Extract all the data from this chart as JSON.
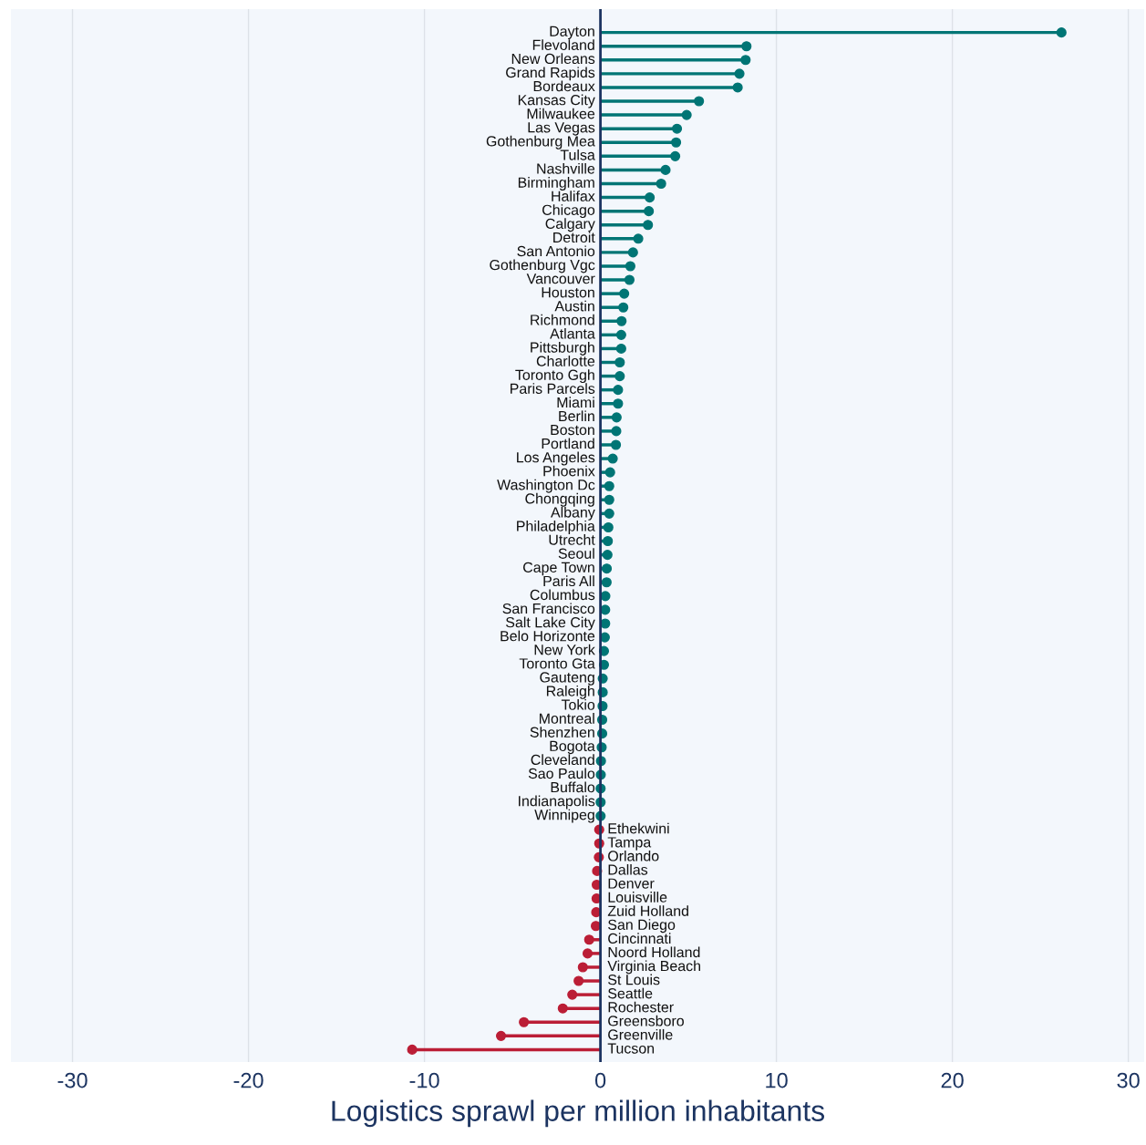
{
  "chart_data": {
    "type": "lollipop",
    "orientation": "horizontal",
    "xlabel": "Logistics sprawl per million inhabitants",
    "categories": [
      "Dayton",
      "Flevoland",
      "New Orleans",
      "Grand Rapids",
      "Bordeaux",
      "Kansas City",
      "Milwaukee",
      "Las Vegas",
      "Gothenburg Mea",
      "Tulsa",
      "Nashville",
      "Birmingham",
      "Halifax",
      "Chicago",
      "Calgary",
      "Detroit",
      "San Antonio",
      "Gothenburg Vgc",
      "Vancouver",
      "Houston",
      "Austin",
      "Richmond",
      "Atlanta",
      "Pittsburgh",
      "Charlotte",
      "Toronto Ggh",
      "Paris Parcels",
      "Miami",
      "Berlin",
      "Boston",
      "Portland",
      "Los Angeles",
      "Phoenix",
      "Washington Dc",
      "Chongqing",
      "Albany",
      "Philadelphia",
      "Utrecht",
      "Seoul",
      "Cape Town",
      "Paris All",
      "Columbus",
      "San Francisco",
      "Salt Lake City",
      "Belo Horizonte",
      "New York",
      "Toronto Gta",
      "Gauteng",
      "Raleigh",
      "Tokio",
      "Montreal",
      "Shenzhen",
      "Bogota",
      "Cleveland",
      "Sao Paulo",
      "Buffalo",
      "Indianapolis",
      "Winnipeg",
      "Ethekwini",
      "Tampa",
      "Orlando",
      "Dallas",
      "Denver",
      "Louisville",
      "Zuid Holland",
      "San Diego",
      "Cincinnati",
      "Noord Holland",
      "Virginia Beach",
      "St Louis",
      "Seattle",
      "Rochester",
      "Greensboro",
      "Greenville",
      "Tucson"
    ],
    "values": [
      26.2,
      8.3,
      8.25,
      7.9,
      7.8,
      5.6,
      4.9,
      4.35,
      4.3,
      4.25,
      3.7,
      3.45,
      2.8,
      2.75,
      2.7,
      2.15,
      1.85,
      1.7,
      1.65,
      1.35,
      1.3,
      1.2,
      1.18,
      1.18,
      1.1,
      1.1,
      1.0,
      1.0,
      0.92,
      0.9,
      0.88,
      0.7,
      0.55,
      0.5,
      0.5,
      0.5,
      0.45,
      0.42,
      0.4,
      0.36,
      0.35,
      0.28,
      0.27,
      0.27,
      0.25,
      0.2,
      0.2,
      0.13,
      0.13,
      0.12,
      0.1,
      0.1,
      0.07,
      0.03,
      0.02,
      0.01,
      0.01,
      0.01,
      -0.07,
      -0.07,
      -0.09,
      -0.19,
      -0.21,
      -0.22,
      -0.24,
      -0.26,
      -0.64,
      -0.73,
      -1.0,
      -1.24,
      -1.6,
      -2.14,
      -4.35,
      -5.65,
      -10.7
    ],
    "colors": [
      "#007575",
      "#007575",
      "#007575",
      "#007575",
      "#007575",
      "#007575",
      "#007575",
      "#007575",
      "#007575",
      "#007575",
      "#007575",
      "#007575",
      "#007575",
      "#007575",
      "#007575",
      "#007575",
      "#007575",
      "#007575",
      "#007575",
      "#007575",
      "#007575",
      "#007575",
      "#007575",
      "#007575",
      "#007575",
      "#007575",
      "#007575",
      "#007575",
      "#007575",
      "#007575",
      "#007575",
      "#007575",
      "#007575",
      "#007575",
      "#007575",
      "#007575",
      "#007575",
      "#007575",
      "#007575",
      "#007575",
      "#007575",
      "#007575",
      "#007575",
      "#007575",
      "#007575",
      "#007575",
      "#007575",
      "#007575",
      "#007575",
      "#007575",
      "#007575",
      "#007575",
      "#007575",
      "#007575",
      "#007575",
      "#007575",
      "#007575",
      "#007575",
      "#bb1e36",
      "#bb1e36",
      "#bb1e36",
      "#bb1e36",
      "#bb1e36",
      "#bb1e36",
      "#bb1e36",
      "#bb1e36",
      "#bb1e36",
      "#bb1e36",
      "#bb1e36",
      "#bb1e36",
      "#bb1e36",
      "#bb1e36",
      "#bb1e36",
      "#bb1e36",
      "#bb1e36"
    ],
    "xlim": [
      -33.5,
      30.9
    ],
    "xticks": [
      -30,
      -20,
      -10,
      0,
      10,
      20,
      30
    ],
    "grid": "x",
    "marker": "circle"
  }
}
